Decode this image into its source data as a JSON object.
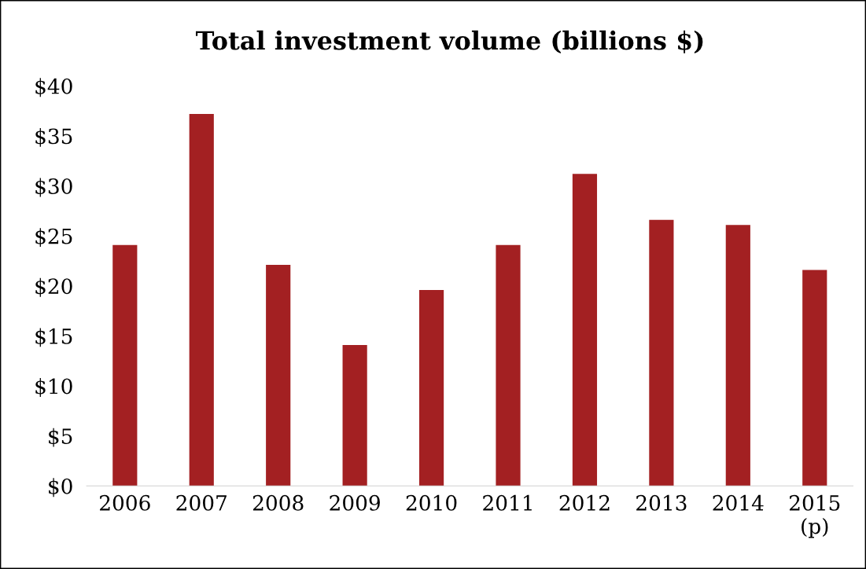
{
  "chart_data": {
    "type": "bar",
    "title": "Total investment volume (billions $)",
    "categories": [
      "2006",
      "2007",
      "2008",
      "2009",
      "2010",
      "2011",
      "2012",
      "2013",
      "2014",
      "2015\n(p)"
    ],
    "values": [
      24.1,
      37.2,
      22.1,
      14.1,
      19.6,
      24.1,
      31.2,
      26.6,
      26.1,
      21.6
    ],
    "color": "#a32022",
    "ylim": [
      0,
      40
    ],
    "yticks": [
      {
        "value": 0,
        "label": "$0"
      },
      {
        "value": 5,
        "label": "$5"
      },
      {
        "value": 10,
        "label": "$10"
      },
      {
        "value": 15,
        "label": "$15"
      },
      {
        "value": 20,
        "label": "$20"
      },
      {
        "value": 25,
        "label": "$25"
      },
      {
        "value": 30,
        "label": "$30"
      },
      {
        "value": 35,
        "label": "$35"
      },
      {
        "value": 40,
        "label": "$40"
      }
    ],
    "grid": false
  }
}
